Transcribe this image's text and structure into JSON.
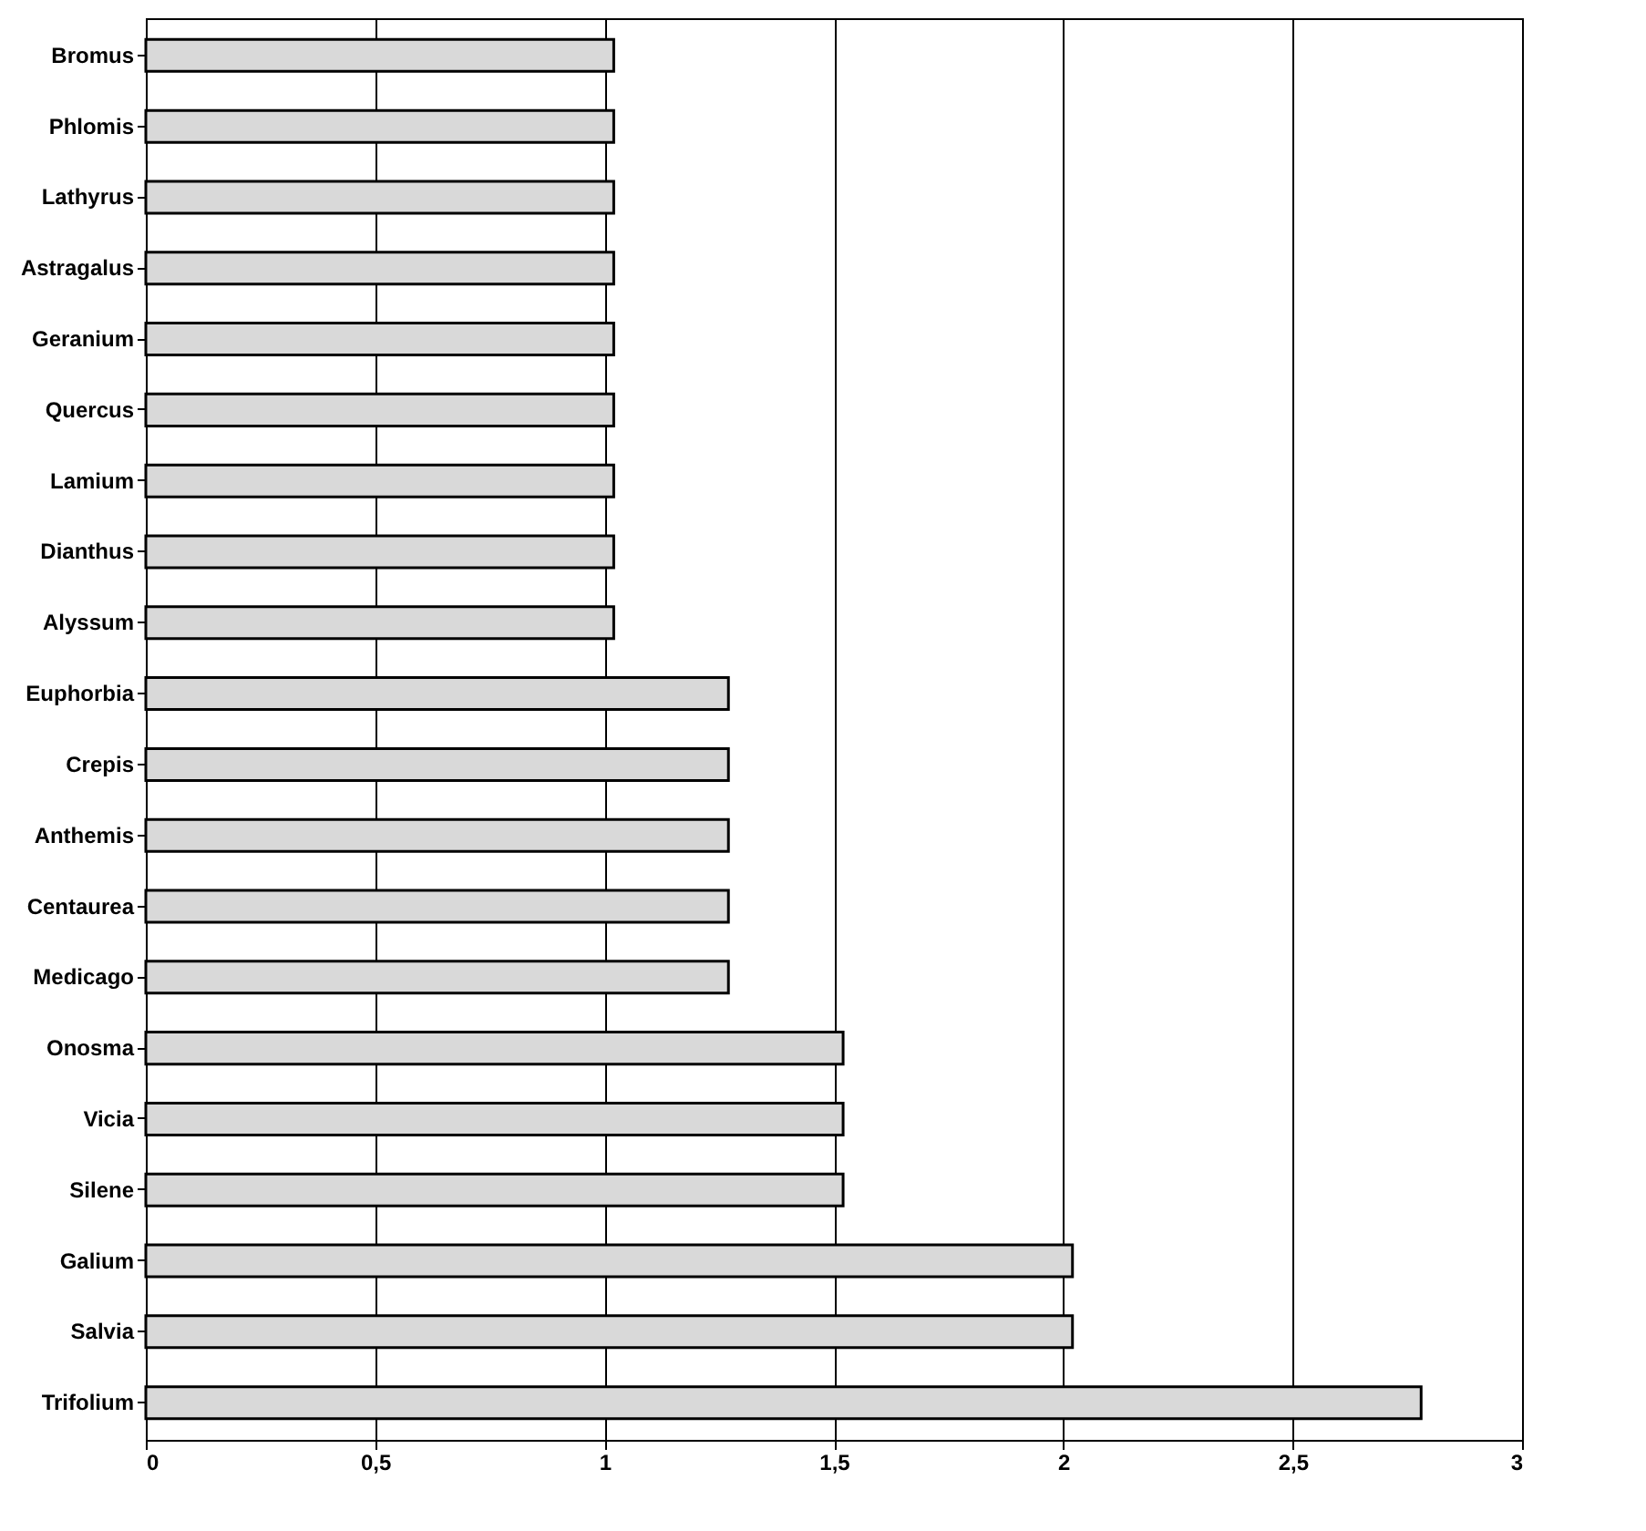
{
  "chart_data": {
    "type": "bar",
    "orientation": "horizontal",
    "categories": [
      "Bromus",
      "Phlomis",
      "Lathyrus",
      "Astragalus",
      "Geranium",
      "Quercus",
      "Lamium",
      "Dianthus",
      "Alyssum",
      "Euphorbia",
      "Crepis",
      "Anthemis",
      "Centaurea",
      "Medicago",
      "Onosma",
      "Vicia",
      "Silene",
      "Galium",
      "Salvia",
      "Trifolium"
    ],
    "values": [
      1.02,
      1.02,
      1.02,
      1.02,
      1.02,
      1.02,
      1.02,
      1.02,
      1.02,
      1.27,
      1.27,
      1.27,
      1.27,
      1.27,
      1.52,
      1.52,
      1.52,
      2.02,
      2.02,
      2.78
    ],
    "color": "#d9d9d9",
    "xlim": [
      0,
      3
    ],
    "xticks": [
      0,
      {
        "value": 0.5,
        "label": "0,5"
      },
      1,
      {
        "value": 1.5,
        "label": "1,5"
      },
      2,
      {
        "value": 2.5,
        "label": "2,5"
      },
      3
    ],
    "grid": "x"
  }
}
